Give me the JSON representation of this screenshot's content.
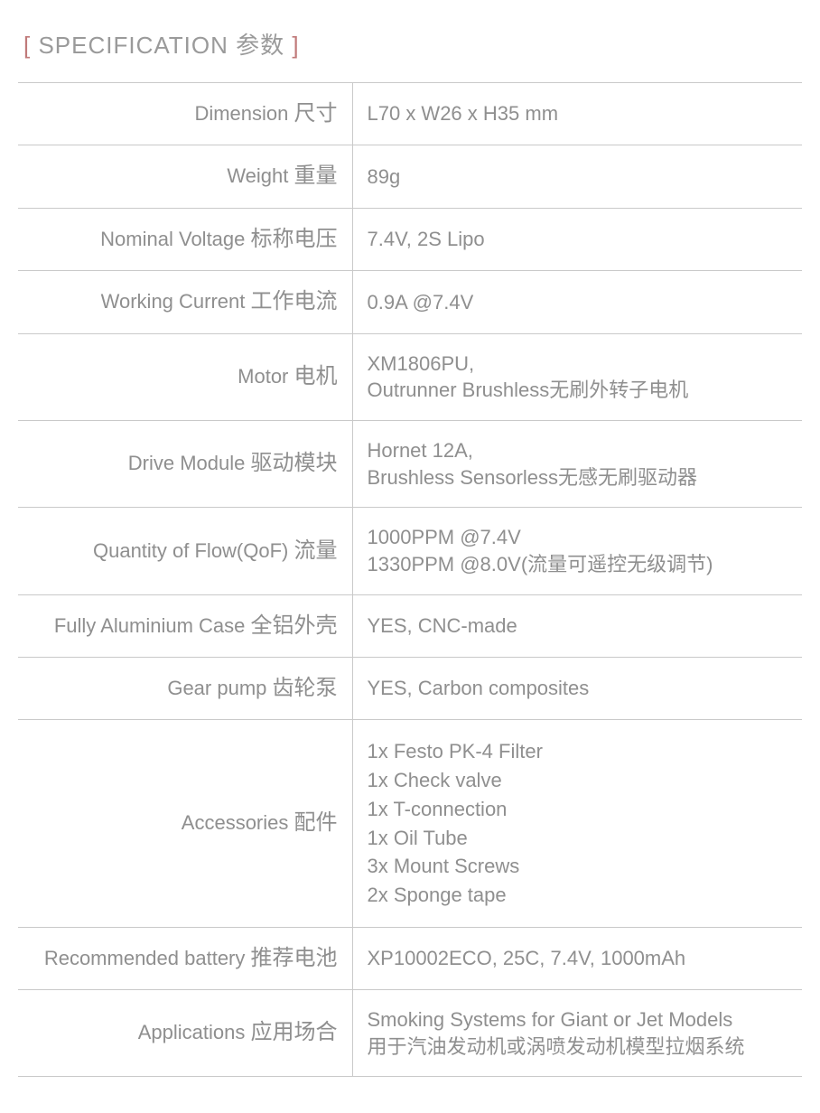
{
  "header": {
    "bracket_open": "[ ",
    "title_en": "SPECIFICATION ",
    "title_cn": "参数",
    "bracket_close": " ]"
  },
  "rows": [
    {
      "label_en": "Dimension ",
      "label_cn": "尺寸",
      "value": "L70 x W26 x H35 mm"
    },
    {
      "label_en": "Weight ",
      "label_cn": "重量",
      "value": "89g"
    },
    {
      "label_en": "Nominal Voltage ",
      "label_cn": "标称电压",
      "value": "7.4V, 2S Lipo"
    },
    {
      "label_en": "Working Current ",
      "label_cn": "工作电流",
      "value": "0.9A @7.4V"
    },
    {
      "label_en": "Motor ",
      "label_cn": "电机",
      "line1": "XM1806PU,",
      "line2": "Outrunner Brushless无刷外转子电机"
    },
    {
      "label_en": "Drive Module ",
      "label_cn": "驱动模块",
      "line1": "Hornet 12A,",
      "line2": "Brushless Sensorless无感无刷驱动器"
    },
    {
      "label_en": "Quantity of Flow(QoF) ",
      "label_cn": "流量",
      "line1": "1000PPM @7.4V",
      "line2": "1330PPM @8.0V(流量可遥控无级调节)"
    },
    {
      "label_en": "Fully Aluminium Case ",
      "label_cn": "全铝外壳",
      "value": "YES, CNC-made"
    },
    {
      "label_en": "Gear pump ",
      "label_cn": "齿轮泵",
      "value": "YES, Carbon composites"
    },
    {
      "label_en": "Accessories ",
      "label_cn": "配件",
      "list": [
        "1x Festo PK-4 Filter",
        "1x Check valve",
        "1x T-connection",
        "1x Oil Tube",
        "3x Mount Screws",
        "2x  Sponge tape"
      ]
    },
    {
      "label_en": "Recommended battery ",
      "label_cn": "推荐电池",
      "value": "XP10002ECO, 25C, 7.4V, 1000mAh"
    },
    {
      "label_en": "Applications ",
      "label_cn": "应用场合",
      "line1": "Smoking Systems for Giant or Jet Models",
      "line2": "用于汽油发动机或涡喷发动机模型拉烟系统"
    }
  ]
}
